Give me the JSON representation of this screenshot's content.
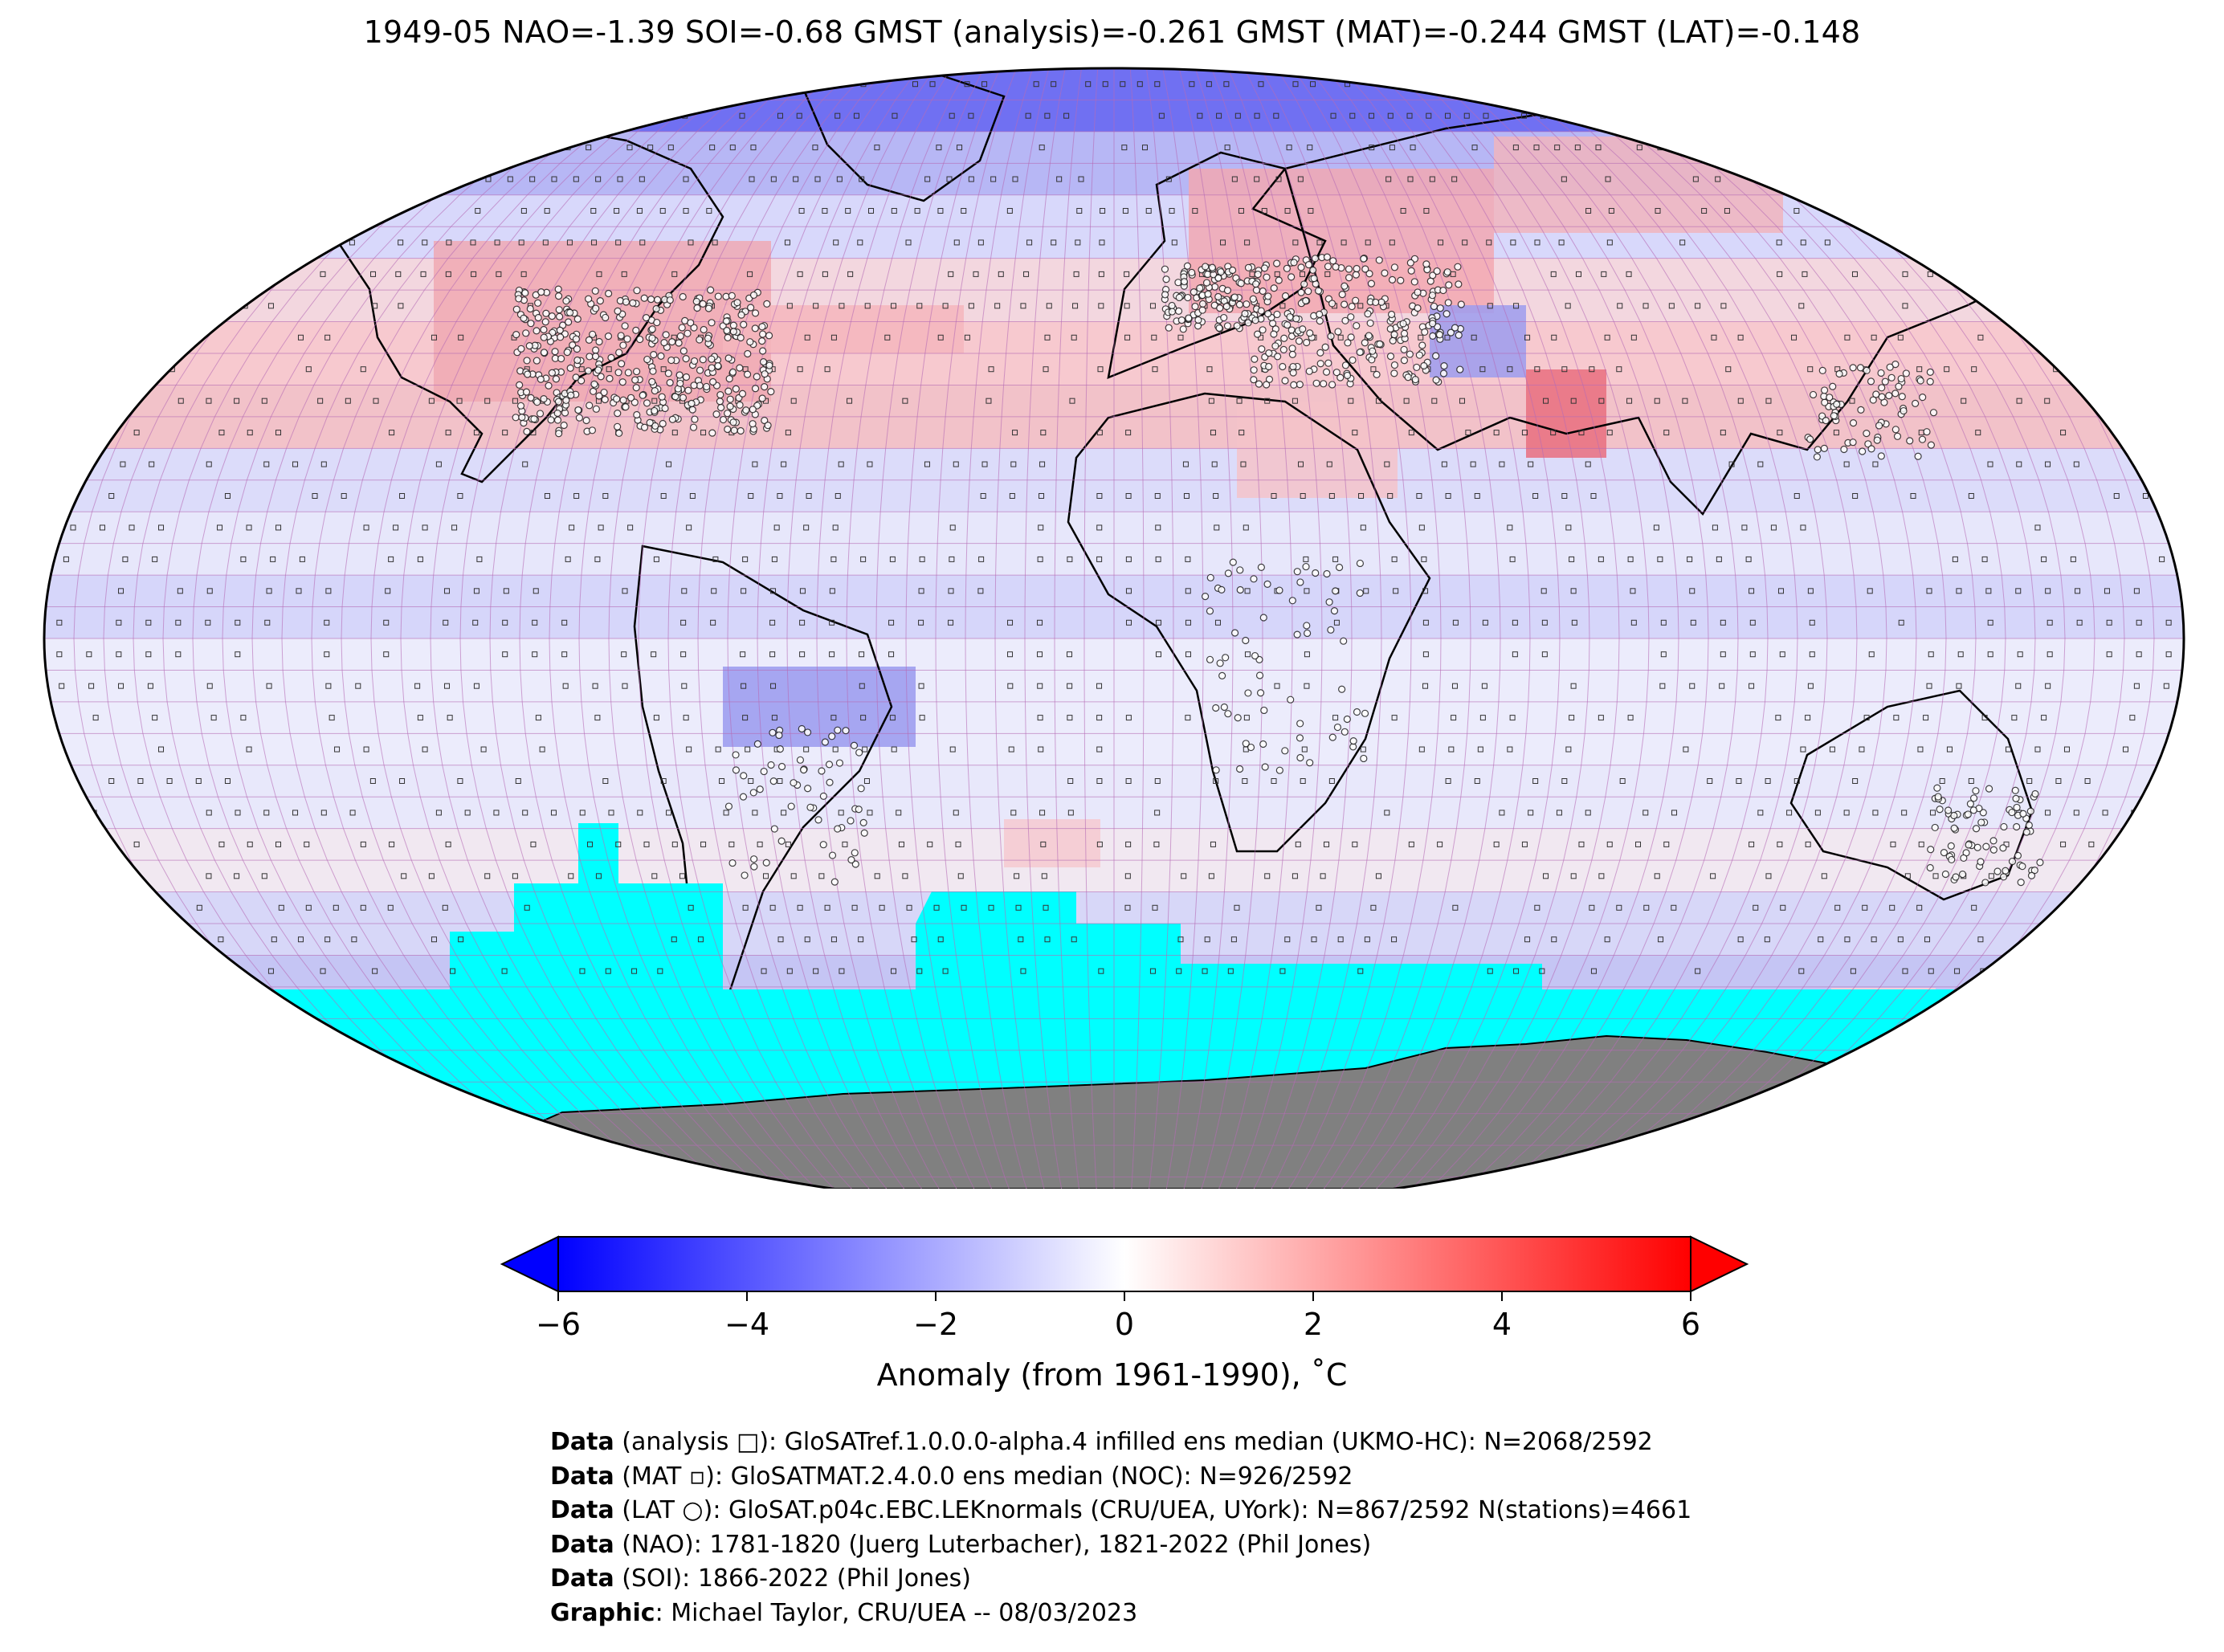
{
  "title": "1949-05 NAO=-1.39 SOI=-0.68 GMST (analysis)=-0.261 GMST (MAT)=-0.244 GMST (LAT)=-0.148",
  "colorbar": {
    "label": "Anomaly (from 1961-1990), ˚C",
    "vmin": -6,
    "vmax": 6,
    "ticks": [
      "−6",
      "−4",
      "−2",
      "0",
      "2",
      "4",
      "6"
    ],
    "colors": {
      "low": "#0000ff",
      "mid": "#ffffff",
      "high": "#ff0000"
    }
  },
  "map_colors": {
    "sea_ice": "#00ffff",
    "antarctica": "#808080",
    "grid": "#b56bb5",
    "coast": "#000000"
  },
  "footer": [
    {
      "bold": "Data",
      "text": " (analysis □): GloSATref.1.0.0.0-alpha.4 infilled ens median (UKMO-HC): N=2068/2592"
    },
    {
      "bold": "Data",
      "text": " (MAT ▫): GloSATMAT.2.4.0.0 ens median (NOC): N=926/2592"
    },
    {
      "bold": "Data",
      "text": " (LAT ○): GloSAT.p04c.EBC.LEKnormals (CRU/UEA, UYork): N=867/2592 N(stations)=4661"
    },
    {
      "bold": "Data",
      "text": " (NAO): 1781-1820 (Juerg Luterbacher), 1821-2022 (Phil Jones)"
    },
    {
      "bold": "Data",
      "text": " (SOI): 1866-2022 (Phil Jones)"
    },
    {
      "bold": "Graphic",
      "text": ": Michael Taylor, CRU/UEA -- 08/03/2023"
    }
  ]
}
